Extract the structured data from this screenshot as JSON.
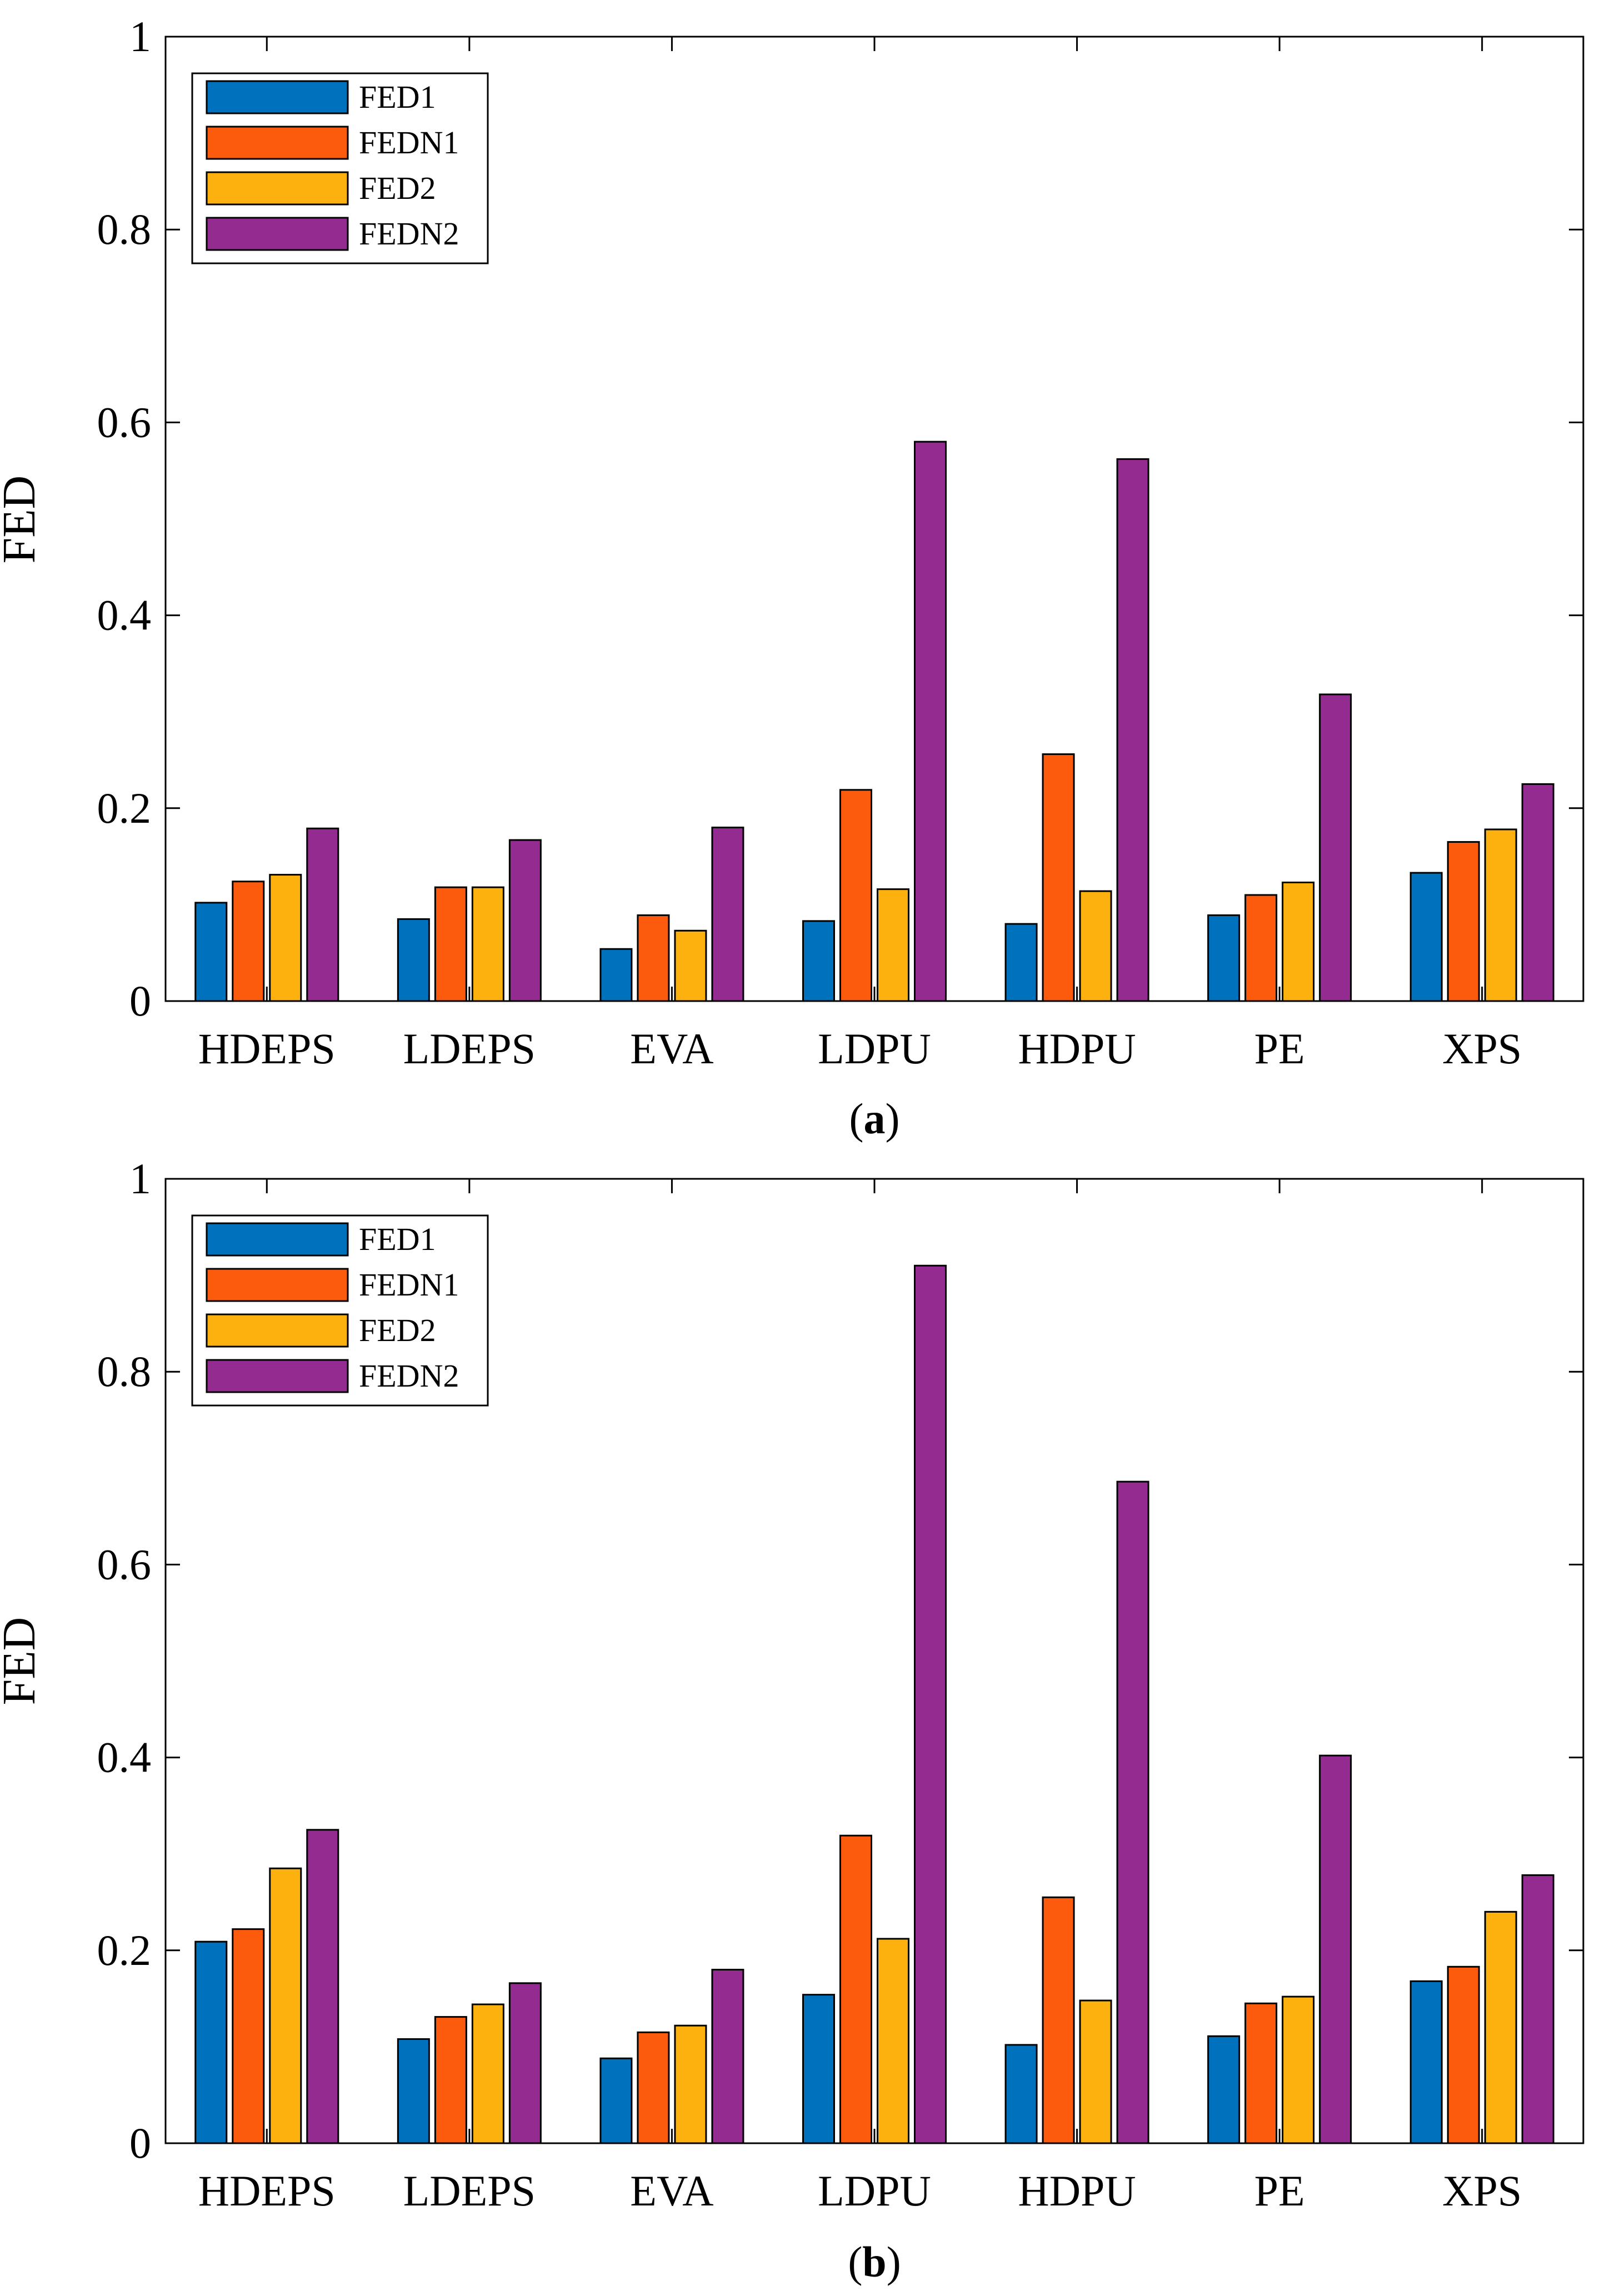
{
  "colors": {
    "FED1": "#0072bd",
    "FEDN1": "#fc5b0e",
    "FED2": "#fdb10f",
    "FEDN2": "#932b90",
    "axis": "#000000",
    "background": "#ffffff"
  },
  "chart_data": [
    {
      "type": "bar",
      "panel": "a",
      "caption_letter": "a",
      "caption_open": "(",
      "caption_close": ")",
      "ylabel": "FED",
      "xlabel": "",
      "ylim": [
        0,
        1
      ],
      "yticks": [
        0,
        0.2,
        0.4,
        0.6,
        0.8,
        1
      ],
      "ytick_labels": [
        "0",
        "0.2",
        "0.4",
        "0.6",
        "0.8",
        "1"
      ],
      "grid": false,
      "legend_position": "top-left",
      "categories": [
        "HDEPS",
        "LDEPS",
        "EVA",
        "LDPU",
        "HDPU",
        "PE",
        "XPS"
      ],
      "series": [
        {
          "name": "FED1",
          "values": [
            0.102,
            0.085,
            0.054,
            0.083,
            0.08,
            0.089,
            0.133
          ]
        },
        {
          "name": "FEDN1",
          "values": [
            0.124,
            0.118,
            0.089,
            0.219,
            0.256,
            0.11,
            0.165
          ]
        },
        {
          "name": "FED2",
          "values": [
            0.131,
            0.118,
            0.073,
            0.116,
            0.114,
            0.123,
            0.178
          ]
        },
        {
          "name": "FEDN2",
          "values": [
            0.179,
            0.167,
            0.18,
            0.58,
            0.562,
            0.318,
            0.225
          ]
        }
      ]
    },
    {
      "type": "bar",
      "panel": "b",
      "caption_letter": "b",
      "caption_open": "(",
      "caption_close": ")",
      "ylabel": "FED",
      "xlabel": "",
      "ylim": [
        0,
        1
      ],
      "yticks": [
        0,
        0.2,
        0.4,
        0.6,
        0.8,
        1
      ],
      "ytick_labels": [
        "0",
        "0.2",
        "0.4",
        "0.6",
        "0.8",
        "1"
      ],
      "grid": false,
      "legend_position": "top-left",
      "categories": [
        "HDEPS",
        "LDEPS",
        "EVA",
        "LDPU",
        "HDPU",
        "PE",
        "XPS"
      ],
      "series": [
        {
          "name": "FED1",
          "values": [
            0.209,
            0.108,
            0.088,
            0.154,
            0.102,
            0.111,
            0.168
          ]
        },
        {
          "name": "FEDN1",
          "values": [
            0.222,
            0.131,
            0.115,
            0.319,
            0.255,
            0.145,
            0.183
          ]
        },
        {
          "name": "FED2",
          "values": [
            0.285,
            0.144,
            0.122,
            0.212,
            0.148,
            0.152,
            0.24
          ]
        },
        {
          "name": "FEDN2",
          "values": [
            0.325,
            0.166,
            0.18,
            0.91,
            0.686,
            0.402,
            0.278
          ]
        }
      ]
    }
  ]
}
